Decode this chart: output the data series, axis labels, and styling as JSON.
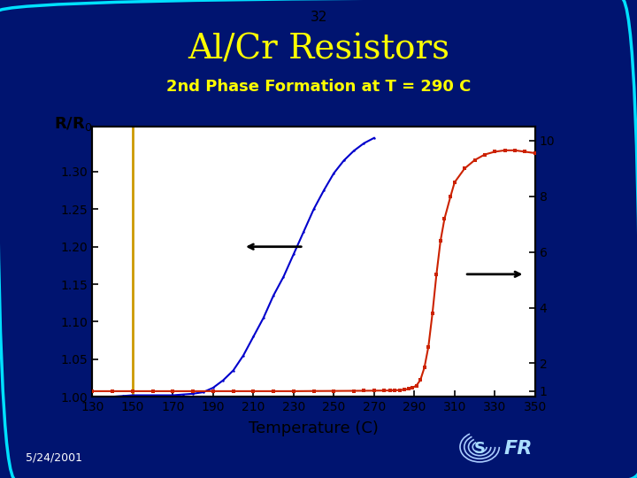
{
  "title": "Al/Cr Resistors",
  "slide_number": "32",
  "subtitle": "2nd Phase Formation at T = 290 C",
  "xlabel": "Temperature (C)",
  "date_label": "5/24/2001",
  "background_color": "#001470",
  "plot_bg_color": "#ffffff",
  "border_color": "#00e0ff",
  "title_color": "#ffff00",
  "subtitle_color": "#ffff00",
  "blue_x": [
    130,
    135,
    140,
    145,
    150,
    155,
    160,
    165,
    170,
    175,
    180,
    185,
    190,
    195,
    200,
    205,
    210,
    215,
    220,
    225,
    230,
    235,
    240,
    245,
    250,
    255,
    260,
    265,
    270
  ],
  "blue_y": [
    0.998,
    0.999,
    1.0,
    1.001,
    1.002,
    1.002,
    1.002,
    1.002,
    1.002,
    1.003,
    1.004,
    1.006,
    1.012,
    1.022,
    1.035,
    1.055,
    1.08,
    1.105,
    1.135,
    1.16,
    1.19,
    1.22,
    1.25,
    1.275,
    1.298,
    1.315,
    1.328,
    1.338,
    1.345
  ],
  "red_x": [
    130,
    140,
    150,
    160,
    170,
    180,
    190,
    200,
    210,
    220,
    230,
    240,
    250,
    260,
    265,
    270,
    275,
    278,
    280,
    283,
    285,
    287,
    289,
    291,
    293,
    295,
    297,
    299,
    301,
    303,
    305,
    308,
    310,
    315,
    320,
    325,
    330,
    335,
    340,
    345,
    350
  ],
  "red_y": [
    1.0,
    1.0,
    1.0,
    1.0,
    1.0,
    1.0,
    1.0,
    1.0,
    1.0,
    1.0,
    1.0,
    1.005,
    1.008,
    1.012,
    1.015,
    1.018,
    1.022,
    1.025,
    1.03,
    1.04,
    1.055,
    1.08,
    1.12,
    1.2,
    1.4,
    1.85,
    2.6,
    3.8,
    5.2,
    6.4,
    7.2,
    8.0,
    8.5,
    9.0,
    9.3,
    9.5,
    9.6,
    9.65,
    9.65,
    9.6,
    9.55
  ],
  "xmin": 130,
  "xmax": 350,
  "xticks": [
    130,
    150,
    170,
    190,
    210,
    230,
    250,
    270,
    290,
    310,
    330,
    350
  ],
  "yleft_min": 1.0,
  "yleft_max": 1.36,
  "yleft_ticks": [
    1.0,
    1.05,
    1.1,
    1.15,
    1.2,
    1.25,
    1.3
  ],
  "yright_min": 1,
  "yright_max": 10,
  "yright_ticks": [
    1,
    2,
    4,
    6,
    8,
    10
  ],
  "vline_x": 150,
  "vline_color": "#cc9900",
  "blue_color": "#0000cc",
  "red_color": "#cc2200"
}
